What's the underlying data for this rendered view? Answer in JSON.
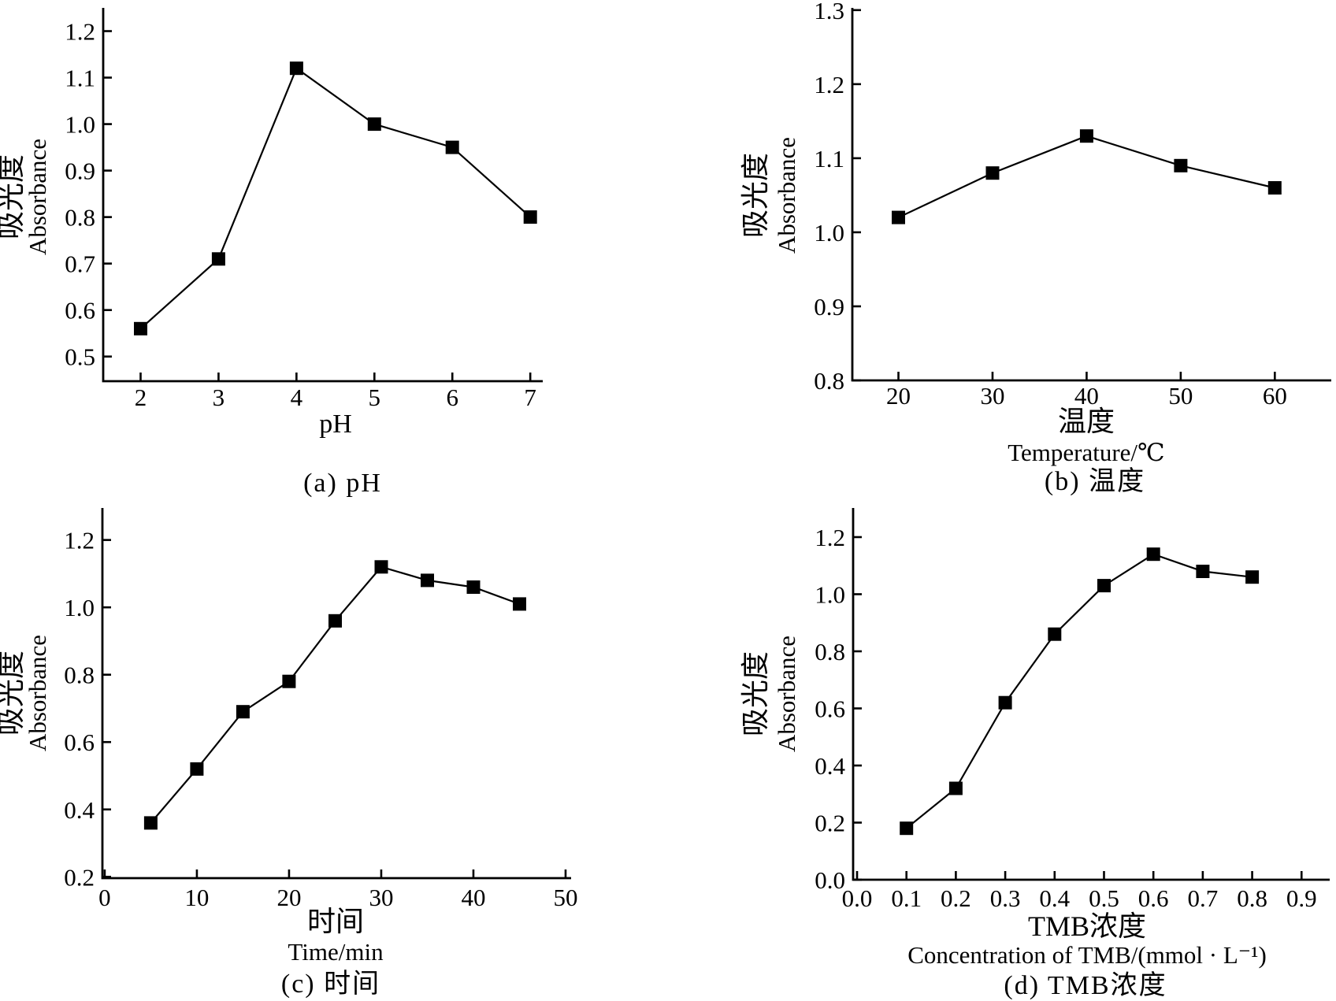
{
  "figure": {
    "background": "#ffffff",
    "ink_color": "#000000",
    "description": "Four-panel absorbance optimization line charts"
  },
  "chart_data": [
    {
      "id": "a",
      "type": "line",
      "caption": "(a) pH",
      "x": [
        2,
        3,
        4,
        5,
        6,
        7
      ],
      "y": [
        0.56,
        0.71,
        1.12,
        1.0,
        0.95,
        0.8
      ],
      "xlabel_lines": [
        "pH"
      ],
      "ylabel_cn": "吸光度",
      "ylabel_en": "Absorbance",
      "xticks": [
        2,
        3,
        4,
        5,
        6,
        7
      ],
      "xtick_labels": [
        "2",
        "3",
        "4",
        "5",
        "6",
        "7"
      ],
      "yticks": [
        0.5,
        0.6,
        0.7,
        0.8,
        0.9,
        1.0,
        1.1,
        1.2
      ],
      "ytick_labels": [
        "0.5",
        "0.6",
        "0.7",
        "0.8",
        "0.9",
        "1.0",
        "1.1",
        "1.2"
      ],
      "xlim": [
        1.52,
        7.16
      ],
      "ylim": [
        0.447,
        1.25
      ],
      "marker": "filled-square",
      "line_color": "#000000",
      "grid": false,
      "legend": null
    },
    {
      "id": "b",
      "type": "line",
      "caption": "(b) 温度",
      "x": [
        20,
        30,
        40,
        50,
        60
      ],
      "y": [
        1.02,
        1.08,
        1.13,
        1.09,
        1.06
      ],
      "xlabel_lines": [
        "温度",
        "Temperature/℃"
      ],
      "ylabel_cn": "吸光度",
      "ylabel_en": "Absorbance",
      "xticks": [
        20,
        30,
        40,
        50,
        60
      ],
      "xtick_labels": [
        "20",
        "30",
        "40",
        "50",
        "60"
      ],
      "yticks": [
        0.8,
        0.9,
        1.0,
        1.1,
        1.2,
        1.3
      ],
      "ytick_labels": [
        "0.8",
        "0.9",
        "1.0",
        "1.1",
        "1.2",
        "1.3"
      ],
      "xlim": [
        15.1,
        66.0
      ],
      "ylim": [
        0.8,
        1.303
      ],
      "marker": "filled-square",
      "line_color": "#000000",
      "grid": false,
      "legend": null
    },
    {
      "id": "c",
      "type": "line",
      "caption": "(c) 时间",
      "x": [
        5,
        10,
        15,
        20,
        25,
        30,
        35,
        40,
        45
      ],
      "y": [
        0.36,
        0.52,
        0.69,
        0.78,
        0.96,
        1.12,
        1.08,
        1.06,
        1.01
      ],
      "xlabel_lines": [
        "时间",
        "Time/min"
      ],
      "ylabel_cn": "吸光度",
      "ylabel_en": "Absorbance",
      "xticks": [
        0,
        10,
        20,
        30,
        40,
        50
      ],
      "xtick_labels": [
        "0",
        "10",
        "20",
        "30",
        "40",
        "50"
      ],
      "yticks": [
        0.2,
        0.4,
        0.6,
        0.8,
        1.0,
        1.2
      ],
      "ytick_labels": [
        "0.2",
        "0.4",
        "0.6",
        "0.8",
        "1.0",
        "1.2"
      ],
      "xlim": [
        -0.25,
        50.6
      ],
      "ylim": [
        0.196,
        1.295
      ],
      "marker": "filled-square",
      "line_color": "#000000",
      "grid": false,
      "legend": null
    },
    {
      "id": "d",
      "type": "line",
      "caption": "(d) TMB浓度",
      "x": [
        0.1,
        0.2,
        0.3,
        0.4,
        0.5,
        0.6,
        0.7,
        0.8
      ],
      "y": [
        0.18,
        0.32,
        0.62,
        0.86,
        1.03,
        1.14,
        1.08,
        1.06
      ],
      "xlabel_lines": [
        "TMB浓度",
        "Concentration of TMB/(mmol · L⁻¹)"
      ],
      "ylabel_cn": "吸光度",
      "ylabel_en": "Absorbance",
      "xticks": [
        0.0,
        0.1,
        0.2,
        0.3,
        0.4,
        0.5,
        0.6,
        0.7,
        0.8,
        0.9
      ],
      "xtick_labels": [
        "0.0",
        "0.1",
        "0.2",
        "0.3",
        "0.4",
        "0.5",
        "0.6",
        "0.7",
        "0.8",
        "0.9"
      ],
      "yticks": [
        0.0,
        0.2,
        0.4,
        0.6,
        0.8,
        1.0,
        1.2
      ],
      "ytick_labels": [
        "0.0",
        "0.2",
        "0.4",
        "0.6",
        "0.8",
        "1.0",
        "1.2"
      ],
      "xlim": [
        -0.008,
        0.957
      ],
      "ylim": [
        0.0,
        1.302
      ],
      "marker": "filled-square",
      "line_color": "#000000",
      "grid": false,
      "legend": null
    }
  ]
}
